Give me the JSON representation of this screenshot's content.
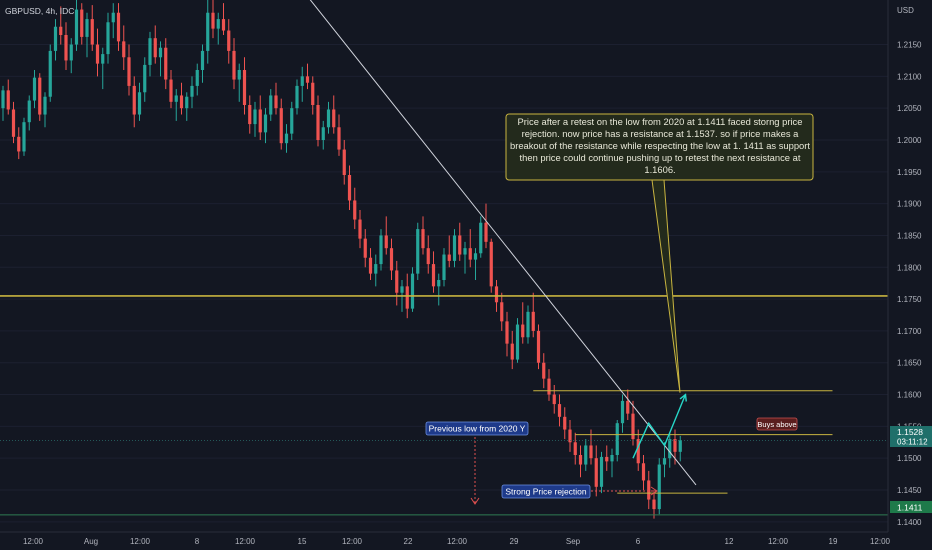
{
  "header": {
    "symbol": "GBPUSD, 4h, IDC",
    "currency": "USD"
  },
  "colors": {
    "background": "#131722",
    "up": "#26a69a",
    "down": "#ef5350",
    "level": "#c8b440",
    "support": "#2f7d52",
    "trendline": "#d1d4dc",
    "arrow": "#27d7c8",
    "note_bg": "#232a1c",
    "note_border": "#c8b440",
    "label_blue": "#1e3a8a"
  },
  "chart_data": {
    "type": "candlestick",
    "title": "GBPUSD, 4h, IDC",
    "y_axis": {
      "unit": "USD",
      "ticks": [
        "1.1400",
        "1.1450",
        "1.1500",
        "1.1550",
        "1.1600",
        "1.1650",
        "1.1700",
        "1.1750",
        "1.1800",
        "1.1850",
        "1.1900",
        "1.1950",
        "1.2000",
        "1.2050",
        "1.2100",
        "1.2150"
      ],
      "range": [
        1.1384,
        1.222
      ],
      "current_price": {
        "value": "1.1528",
        "countdown": "03:11:12"
      },
      "support_price": {
        "value": "1.1411"
      }
    },
    "x_axis": {
      "ticks": [
        "12:00",
        "Aug",
        "12:00",
        "8",
        "12:00",
        "15",
        "12:00",
        "22",
        "12:00",
        "29",
        "Sep",
        "6",
        "12",
        "12:00",
        "19",
        "12:00"
      ]
    },
    "candles": [
      [
        1.205,
        1.2085,
        1.203,
        1.2078
      ],
      [
        1.2078,
        1.2095,
        1.204,
        1.2048
      ],
      [
        1.2048,
        1.206,
        1.1995,
        1.2005
      ],
      [
        1.2005,
        1.202,
        1.197,
        1.1982
      ],
      [
        1.1982,
        1.2035,
        1.1975,
        1.2028
      ],
      [
        1.2028,
        1.207,
        1.2015,
        1.2062
      ],
      [
        1.2062,
        1.211,
        1.205,
        1.2098
      ],
      [
        1.2098,
        1.2105,
        1.203,
        1.204
      ],
      [
        1.204,
        1.2075,
        1.202,
        1.2068
      ],
      [
        1.2068,
        1.215,
        1.206,
        1.214
      ],
      [
        1.214,
        1.219,
        1.2125,
        1.2178
      ],
      [
        1.2178,
        1.221,
        1.215,
        1.2165
      ],
      [
        1.2165,
        1.2185,
        1.211,
        1.2125
      ],
      [
        1.2125,
        1.216,
        1.2105,
        1.215
      ],
      [
        1.215,
        1.222,
        1.214,
        1.2205
      ],
      [
        1.2205,
        1.2215,
        1.215,
        1.2162
      ],
      [
        1.2162,
        1.22,
        1.213,
        1.219
      ],
      [
        1.219,
        1.2212,
        1.214,
        1.215
      ],
      [
        1.215,
        1.2175,
        1.21,
        1.212
      ],
      [
        1.212,
        1.2145,
        1.208,
        1.2135
      ],
      [
        1.2135,
        1.22,
        1.212,
        1.2185
      ],
      [
        1.2185,
        1.2215,
        1.216,
        1.22
      ],
      [
        1.22,
        1.2215,
        1.214,
        1.2155
      ],
      [
        1.2155,
        1.218,
        1.211,
        1.213
      ],
      [
        1.213,
        1.215,
        1.207,
        1.2085
      ],
      [
        1.2085,
        1.21,
        1.202,
        1.204
      ],
      [
        1.204,
        1.209,
        1.203,
        1.2075
      ],
      [
        1.2075,
        1.213,
        1.206,
        1.2118
      ],
      [
        1.2118,
        1.217,
        1.21,
        1.216
      ],
      [
        1.216,
        1.218,
        1.212,
        1.213
      ],
      [
        1.213,
        1.2155,
        1.21,
        1.2145
      ],
      [
        1.2145,
        1.216,
        1.208,
        1.2095
      ],
      [
        1.2095,
        1.211,
        1.205,
        1.206
      ],
      [
        1.206,
        1.208,
        1.203,
        1.207
      ],
      [
        1.207,
        1.209,
        1.204,
        1.205
      ],
      [
        1.205,
        1.2075,
        1.203,
        1.2068
      ],
      [
        1.2068,
        1.21,
        1.205,
        1.2085
      ],
      [
        1.2085,
        1.212,
        1.207,
        1.211
      ],
      [
        1.211,
        1.215,
        1.209,
        1.214
      ],
      [
        1.214,
        1.222,
        1.212,
        1.22
      ],
      [
        1.22,
        1.222,
        1.216,
        1.2175
      ],
      [
        1.2175,
        1.22,
        1.215,
        1.219
      ],
      [
        1.219,
        1.2215,
        1.2165,
        1.2172
      ],
      [
        1.2172,
        1.219,
        1.212,
        1.214
      ],
      [
        1.214,
        1.216,
        1.208,
        1.2095
      ],
      [
        1.2095,
        1.212,
        1.206,
        1.211
      ],
      [
        1.211,
        1.213,
        1.204,
        1.2055
      ],
      [
        1.2055,
        1.207,
        1.201,
        1.2025
      ],
      [
        1.2025,
        1.206,
        1.2005,
        1.2048
      ],
      [
        1.2048,
        1.207,
        1.2,
        1.2012
      ],
      [
        1.2012,
        1.205,
        1.1995,
        1.204
      ],
      [
        1.204,
        1.208,
        1.203,
        1.207
      ],
      [
        1.207,
        1.209,
        1.204,
        1.205
      ],
      [
        1.205,
        1.2065,
        1.1985,
        1.1995
      ],
      [
        1.1995,
        1.2025,
        1.198,
        1.201
      ],
      [
        1.201,
        1.206,
        1.2,
        1.205
      ],
      [
        1.205,
        1.2095,
        1.204,
        1.2085
      ],
      [
        1.2085,
        1.2115,
        1.206,
        1.21
      ],
      [
        1.21,
        1.212,
        1.208,
        1.209
      ],
      [
        1.209,
        1.21,
        1.204,
        1.2055
      ],
      [
        1.2055,
        1.207,
        1.199,
        1.2
      ],
      [
        1.2,
        1.203,
        1.1985,
        1.202
      ],
      [
        1.202,
        1.206,
        1.201,
        1.2048
      ],
      [
        1.2048,
        1.207,
        1.201,
        1.202
      ],
      [
        1.202,
        1.204,
        1.1975,
        1.1985
      ],
      [
        1.1985,
        1.2,
        1.193,
        1.1945
      ],
      [
        1.1945,
        1.196,
        1.189,
        1.1905
      ],
      [
        1.1905,
        1.1925,
        1.186,
        1.1875
      ],
      [
        1.1875,
        1.189,
        1.183,
        1.1845
      ],
      [
        1.1845,
        1.186,
        1.18,
        1.1815
      ],
      [
        1.1815,
        1.183,
        1.178,
        1.179
      ],
      [
        1.179,
        1.182,
        1.177,
        1.1805
      ],
      [
        1.1805,
        1.186,
        1.1795,
        1.185
      ],
      [
        1.185,
        1.188,
        1.182,
        1.183
      ],
      [
        1.183,
        1.1845,
        1.178,
        1.1795
      ],
      [
        1.1795,
        1.181,
        1.174,
        1.176
      ],
      [
        1.176,
        1.178,
        1.173,
        1.177
      ],
      [
        1.177,
        1.179,
        1.172,
        1.1735
      ],
      [
        1.1735,
        1.18,
        1.173,
        1.179
      ],
      [
        1.179,
        1.187,
        1.178,
        1.186
      ],
      [
        1.186,
        1.188,
        1.182,
        1.183
      ],
      [
        1.183,
        1.185,
        1.179,
        1.1805
      ],
      [
        1.1805,
        1.1825,
        1.176,
        1.177
      ],
      [
        1.177,
        1.179,
        1.174,
        1.178
      ],
      [
        1.178,
        1.183,
        1.177,
        1.182
      ],
      [
        1.182,
        1.185,
        1.18,
        1.181
      ],
      [
        1.181,
        1.186,
        1.18,
        1.185
      ],
      [
        1.185,
        1.187,
        1.181,
        1.182
      ],
      [
        1.182,
        1.184,
        1.179,
        1.183
      ],
      [
        1.183,
        1.186,
        1.18,
        1.1812
      ],
      [
        1.1812,
        1.183,
        1.178,
        1.1822
      ],
      [
        1.1822,
        1.188,
        1.1815,
        1.187
      ],
      [
        1.187,
        1.19,
        1.183,
        1.184
      ],
      [
        1.184,
        1.1845,
        1.176,
        1.177
      ],
      [
        1.177,
        1.178,
        1.173,
        1.1745
      ],
      [
        1.1745,
        1.176,
        1.17,
        1.1715
      ],
      [
        1.1715,
        1.173,
        1.166,
        1.168
      ],
      [
        1.168,
        1.17,
        1.164,
        1.1655
      ],
      [
        1.1655,
        1.172,
        1.165,
        1.171
      ],
      [
        1.171,
        1.1745,
        1.168,
        1.169
      ],
      [
        1.169,
        1.174,
        1.168,
        1.173
      ],
      [
        1.173,
        1.176,
        1.169,
        1.17
      ],
      [
        1.17,
        1.171,
        1.164,
        1.165
      ],
      [
        1.165,
        1.1665,
        1.161,
        1.1625
      ],
      [
        1.1625,
        1.164,
        1.159,
        1.16
      ],
      [
        1.16,
        1.1615,
        1.157,
        1.1585
      ],
      [
        1.1585,
        1.16,
        1.155,
        1.1565
      ],
      [
        1.1565,
        1.158,
        1.153,
        1.1545
      ],
      [
        1.1545,
        1.156,
        1.151,
        1.1525
      ],
      [
        1.1525,
        1.154,
        1.149,
        1.1505
      ],
      [
        1.1505,
        1.152,
        1.147,
        1.149
      ],
      [
        1.149,
        1.153,
        1.148,
        1.152
      ],
      [
        1.152,
        1.1545,
        1.149,
        1.15
      ],
      [
        1.15,
        1.152,
        1.144,
        1.1455
      ],
      [
        1.1455,
        1.151,
        1.1445,
        1.1502
      ],
      [
        1.1502,
        1.152,
        1.148,
        1.1495
      ],
      [
        1.1495,
        1.1515,
        1.147,
        1.1505
      ],
      [
        1.1505,
        1.156,
        1.1495,
        1.1555
      ],
      [
        1.1555,
        1.16,
        1.154,
        1.159
      ],
      [
        1.159,
        1.1608,
        1.156,
        1.157
      ],
      [
        1.157,
        1.159,
        1.152,
        1.153
      ],
      [
        1.153,
        1.1545,
        1.148,
        1.1492
      ],
      [
        1.1492,
        1.1505,
        1.145,
        1.1465
      ],
      [
        1.1465,
        1.148,
        1.142,
        1.1435
      ],
      [
        1.1435,
        1.145,
        1.1405,
        1.142
      ],
      [
        1.142,
        1.15,
        1.1412,
        1.149
      ],
      [
        1.149,
        1.1525,
        1.147,
        1.15
      ],
      [
        1.15,
        1.154,
        1.1485,
        1.153
      ],
      [
        1.153,
        1.1545,
        1.149,
        1.151
      ],
      [
        1.151,
        1.1535,
        1.1495,
        1.1528
      ]
    ],
    "levels": [
      {
        "name": "Major resistance",
        "price": 1.1755,
        "extent": "full"
      },
      {
        "name": "Resistance 1.1606",
        "price": 1.1606
      },
      {
        "name": "Resistance 1.1537",
        "price": 1.1537
      },
      {
        "name": "Low zone",
        "price": 1.1445
      },
      {
        "name": "Low from 2020",
        "price": 1.1411
      }
    ],
    "trendline": {
      "from": {
        "candle": 60,
        "price": 1.2205
      },
      "to": {
        "candle": 132,
        "price": 1.1458
      }
    },
    "projection": [
      {
        "candle": 120,
        "price": 1.15
      },
      {
        "candle": 123,
        "price": 1.1555
      },
      {
        "candle": 126,
        "price": 1.152
      },
      {
        "candle": 130,
        "price": 1.16
      }
    ],
    "annotations": {
      "note": "Price after a retest on the low from 2020 at 1.1411 faced storng price rejection. now price has a resistance at 1.1537. so if price makes a breakout of the resistance while respecting the low at 1. 1411 as support then price could continue pushing up to retest the next resistance at 1.1606.",
      "previous_low": "Previous low from 2020 Y",
      "rejection": "Strong Price rejection",
      "buys": "Buys above"
    }
  }
}
